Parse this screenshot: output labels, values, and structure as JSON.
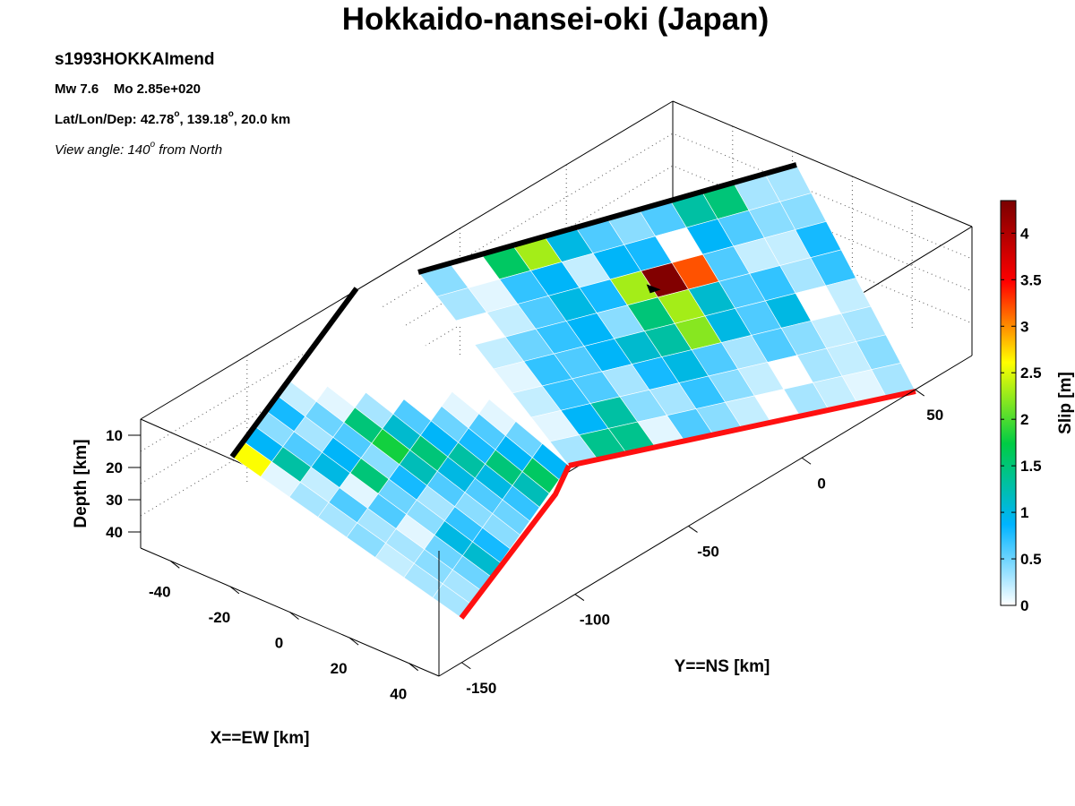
{
  "header": {
    "title": "Hokkaido-nansei-oki (Japan)",
    "event_id": "s1993HOKKAImend",
    "mw_label": "Mw 7.6",
    "mo_label": "Mo 2.85e+020",
    "loc_prefix": "Lat/Lon/Dep: 42.78",
    "loc_lon": ", 139.18",
    "loc_suffix": ", 20.0 km",
    "degree_mark": "o",
    "view_prefix": "View angle: 140",
    "view_suffix": " from North"
  },
  "chart_data": {
    "type": "heatmap",
    "title": "Hokkaido-nansei-oki (Japan)",
    "xlabel": "X==EW [km]",
    "ylabel": "Y==NS [km]",
    "zlabel": "Depth [km]",
    "colorbar_label": "Slip [m]",
    "x_ticks": [
      -40,
      -20,
      0,
      20,
      40
    ],
    "y_ticks": [
      -150,
      -100,
      -50,
      0,
      50
    ],
    "z_ticks": [
      10,
      20,
      30,
      40
    ],
    "colorbar_ticks": [
      0,
      0.5,
      1,
      1.5,
      2,
      2.5,
      3,
      3.5,
      4
    ],
    "colorbar_range": [
      0,
      4.35
    ],
    "colormap": [
      "#ffffff",
      "#00b4ff",
      "#00cc44",
      "#ffff00",
      "#ff0000",
      "#7a0000"
    ],
    "segments": [
      {
        "name": "segment-north",
        "rows": 8,
        "cols": 12,
        "slip": [
          [
            0.4,
            0.0,
            1.6,
            2.3,
            1.0,
            0.6,
            0.4,
            0.6,
            1.3,
            1.5,
            0.3,
            0.3
          ],
          [
            0.3,
            0.1,
            0.7,
            0.9,
            0.2,
            0.9,
            0.8,
            0.0,
            0.9,
            0.6,
            0.4,
            0.4
          ],
          [
            0.0,
            0.2,
            0.6,
            1.0,
            0.8,
            2.3,
            4.3,
            3.2,
            0.6,
            0.2,
            0.2,
            0.8
          ],
          [
            0.2,
            0.5,
            0.7,
            0.9,
            0.4,
            1.5,
            2.3,
            1.1,
            0.6,
            0.7,
            0.3,
            0.7
          ],
          [
            0.1,
            0.7,
            0.6,
            0.9,
            1.1,
            1.3,
            2.2,
            1.0,
            0.6,
            1.0,
            0.0,
            0.2
          ],
          [
            0.2,
            0.7,
            0.6,
            0.3,
            0.8,
            1.0,
            0.6,
            0.3,
            0.6,
            0.4,
            0.2,
            0.3
          ],
          [
            0.1,
            0.9,
            1.3,
            0.4,
            0.3,
            0.7,
            0.4,
            0.2,
            0.0,
            0.3,
            0.2,
            0.4
          ],
          [
            0.3,
            1.4,
            1.4,
            0.1,
            0.6,
            0.4,
            0.2,
            0.0,
            0.3,
            0.2,
            0.1,
            0.3
          ]
        ]
      },
      {
        "name": "segment-south",
        "rows": 8,
        "cols": 11,
        "slip": [
          [
            2.6,
            0.9,
            0.4,
            0.8,
            0.2,
            0.0,
            0.0,
            0.0,
            0.0,
            0.0,
            0.0
          ],
          [
            0.1,
            1.3,
            0.6,
            0.3,
            0.5,
            0.1,
            0.0,
            0.0,
            0.0,
            0.0,
            0.0
          ],
          [
            0.3,
            0.2,
            1.0,
            0.9,
            0.6,
            1.5,
            0.3,
            0.0,
            0.0,
            0.0,
            0.0
          ],
          [
            0.3,
            0.6,
            0.1,
            1.5,
            0.4,
            1.8,
            1.1,
            0.6,
            0.0,
            0.0,
            0.0
          ],
          [
            0.4,
            0.3,
            0.6,
            0.5,
            0.8,
            1.2,
            1.5,
            0.9,
            0.5,
            0.1,
            0.0
          ],
          [
            0.2,
            0.3,
            0.1,
            0.4,
            0.3,
            0.6,
            1.0,
            1.3,
            0.8,
            0.6,
            0.1
          ],
          [
            0.3,
            0.4,
            0.5,
            1.0,
            0.7,
            0.4,
            0.6,
            1.0,
            1.5,
            0.9,
            0.5
          ],
          [
            0.3,
            0.3,
            0.5,
            1.1,
            0.8,
            0.4,
            0.5,
            0.7,
            1.2,
            1.6,
            0.9
          ]
        ]
      }
    ]
  }
}
